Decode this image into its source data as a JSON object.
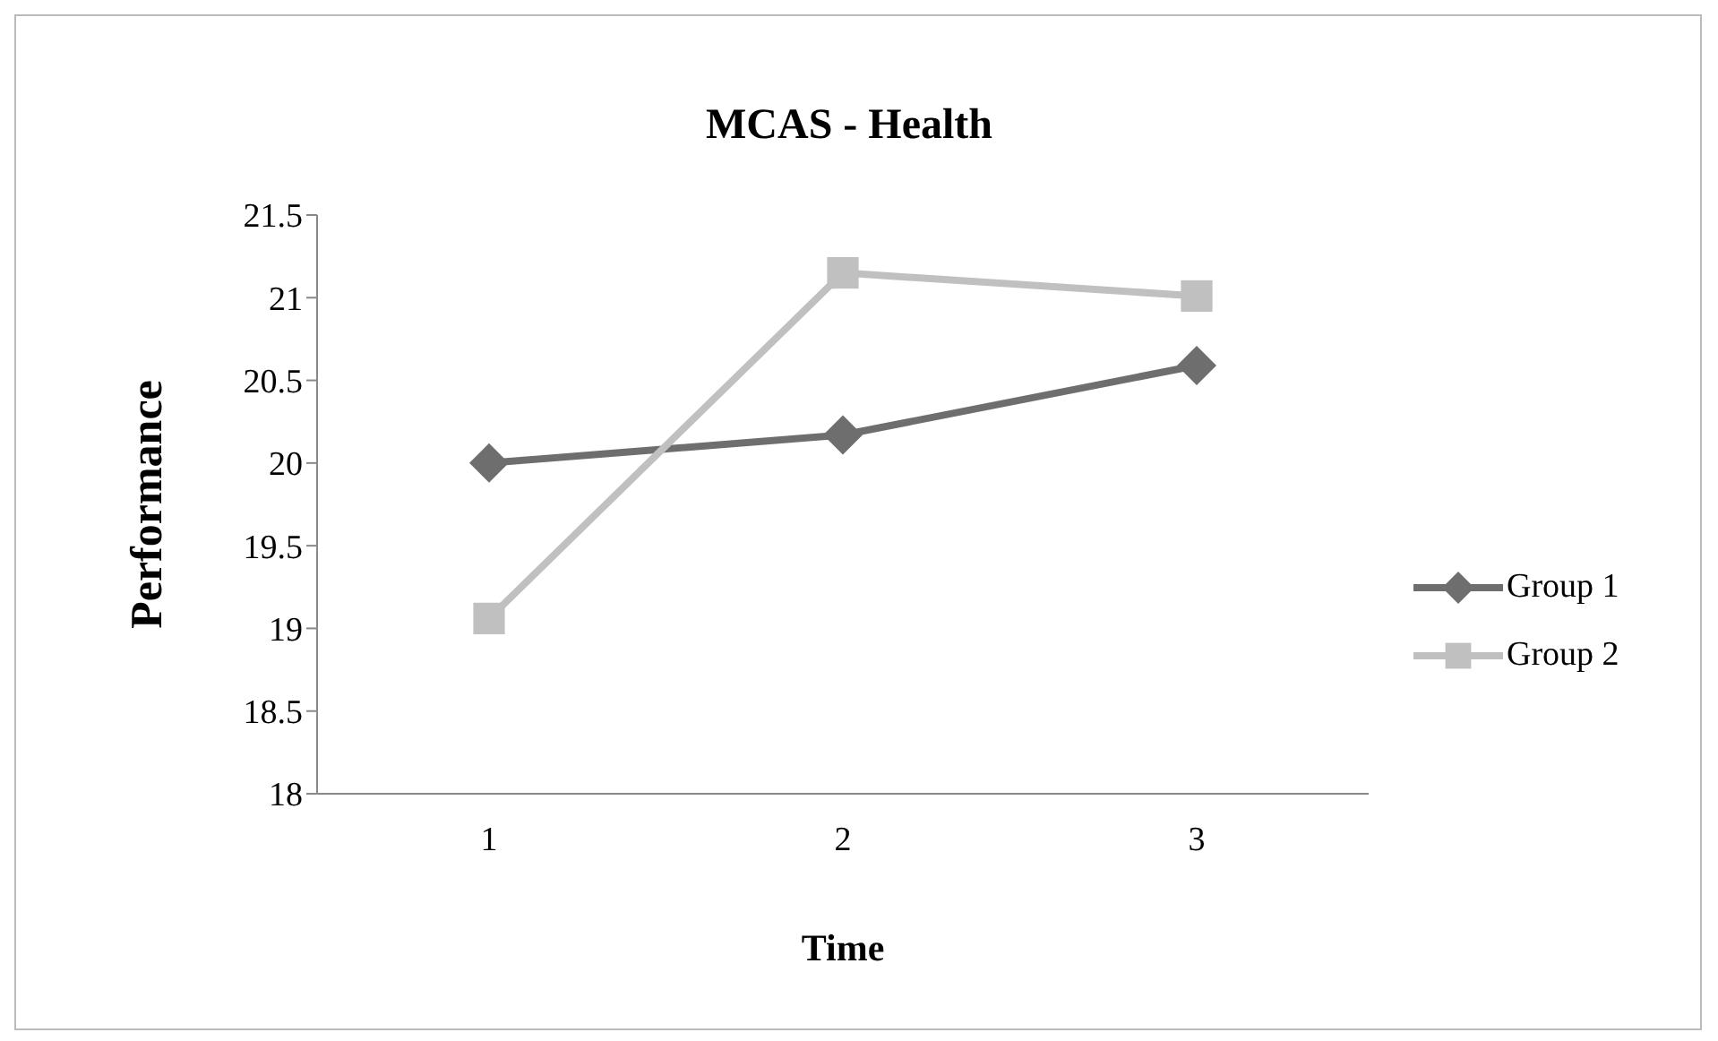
{
  "chart_data": {
    "type": "line",
    "title": "MCAS - Health",
    "xlabel": "Time",
    "ylabel": "Performance",
    "categories": [
      "1",
      "2",
      "3"
    ],
    "series": [
      {
        "name": "Group 1",
        "color": "#6e6e6e",
        "marker": "diamond",
        "values": [
          20.0,
          20.17,
          20.59
        ]
      },
      {
        "name": "Group 2",
        "color": "#c0c0c0",
        "marker": "square",
        "values": [
          19.06,
          21.15,
          21.01
        ]
      }
    ],
    "ylim": [
      18,
      21.5
    ],
    "yticks": [
      18,
      18.5,
      19,
      19.5,
      20,
      20.5,
      21,
      21.5
    ],
    "grid": false,
    "legend": "right"
  }
}
